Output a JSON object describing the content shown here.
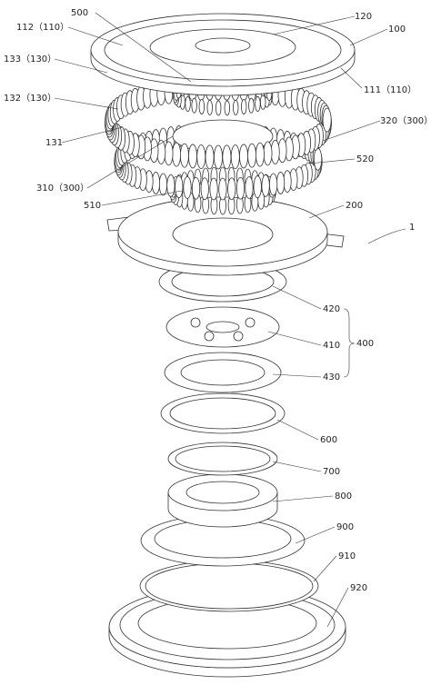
{
  "labels": [
    "500",
    "120",
    "112（110）",
    "100",
    "133（130）",
    "111（110）",
    "132（130）",
    "320（300）",
    "131",
    "520",
    "310（300）",
    "510",
    "200",
    "1",
    "420",
    "410",
    "400",
    "430",
    "600",
    "700",
    "800",
    "900",
    "910",
    "920"
  ]
}
